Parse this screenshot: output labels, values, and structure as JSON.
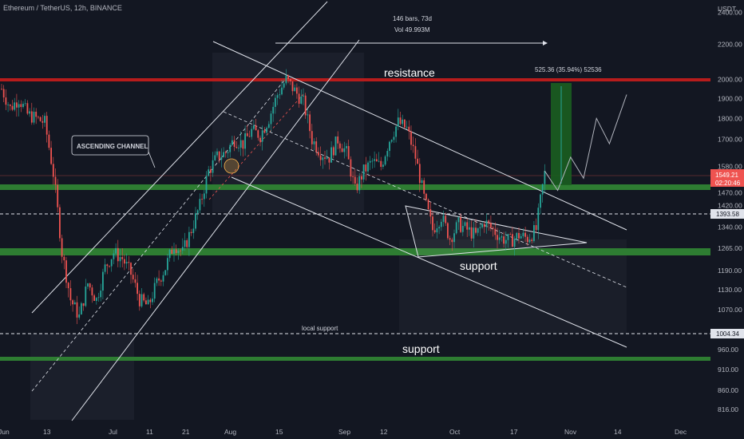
{
  "header": {
    "symbol": "Ethereum / TetherUS, 12h, BINANCE"
  },
  "price_axis": {
    "currency": "USDT"
  },
  "annotations": {
    "resistance": "resistance",
    "support_mid": "support",
    "support_low": "support",
    "local_support": "local support",
    "ascending_channel": "ASCENDING CHANNEL",
    "range_bars": "146 bars, 73d",
    "range_vol": "Vol 49.993M",
    "measure": "525.36 (35.94%) 52536"
  },
  "price_tags": {
    "current": "1549.21",
    "countdown": "02:20:46",
    "level_a": "1393.58",
    "level_b": "1004.34"
  },
  "colors": {
    "background": "#131722",
    "up": "#26a69a",
    "down": "#ef5350",
    "resistance": "#b71c1c",
    "support_zone": "#2e7d32",
    "measure_box": "#1b5e20"
  },
  "chart_data": {
    "type": "candlestick",
    "y_scale": "log",
    "ylim": [
      800,
      2450
    ],
    "xlabel": "",
    "ylabel": "",
    "y_ticks": [
      2400,
      2200,
      2000,
      1900,
      1800,
      1700,
      1580,
      1470,
      1420,
      1340,
      1265,
      1190,
      1130,
      1070,
      960,
      910,
      860,
      816
    ],
    "x_ticks": [
      "Jun",
      "13",
      "Jul",
      "11",
      "21",
      "Aug",
      "15",
      "Sep",
      "12",
      "Oct",
      "17",
      "Nov",
      "14",
      "Dec"
    ],
    "levels": {
      "resistance": 2000,
      "support_zone_mid": 1500,
      "support_zone_low": 1260,
      "support_zone_bottom": 940,
      "dashed_upper": 1393.58,
      "dashed_lower": 1004.34
    },
    "price_path": [
      [
        0,
        1950
      ],
      [
        4,
        1850
      ],
      [
        8,
        1900
      ],
      [
        12,
        1820
      ],
      [
        16,
        1800
      ],
      [
        20,
        1780
      ],
      [
        24,
        1550
      ],
      [
        28,
        1250
      ],
      [
        32,
        1100
      ],
      [
        36,
        1050
      ],
      [
        40,
        1150
      ],
      [
        44,
        1100
      ],
      [
        48,
        1200
      ],
      [
        52,
        1250
      ],
      [
        56,
        1230
      ],
      [
        60,
        1180
      ],
      [
        64,
        1100
      ],
      [
        68,
        1080
      ],
      [
        72,
        1150
      ],
      [
        76,
        1200
      ],
      [
        80,
        1280
      ],
      [
        84,
        1250
      ],
      [
        88,
        1330
      ],
      [
        92,
        1420
      ],
      [
        96,
        1560
      ],
      [
        100,
        1620
      ],
      [
        104,
        1640
      ],
      [
        108,
        1700
      ],
      [
        112,
        1680
      ],
      [
        116,
        1740
      ],
      [
        120,
        1720
      ],
      [
        124,
        1800
      ],
      [
        128,
        1920
      ],
      [
        132,
        2000
      ],
      [
        136,
        1940
      ],
      [
        140,
        1880
      ],
      [
        144,
        1700
      ],
      [
        148,
        1640
      ],
      [
        152,
        1620
      ],
      [
        156,
        1700
      ],
      [
        160,
        1640
      ],
      [
        164,
        1480
      ],
      [
        168,
        1560
      ],
      [
        172,
        1600
      ],
      [
        176,
        1580
      ],
      [
        180,
        1700
      ],
      [
        184,
        1780
      ],
      [
        188,
        1750
      ],
      [
        192,
        1620
      ],
      [
        196,
        1450
      ],
      [
        200,
        1330
      ],
      [
        204,
        1380
      ],
      [
        208,
        1300
      ],
      [
        212,
        1350
      ],
      [
        216,
        1330
      ],
      [
        220,
        1310
      ],
      [
        224,
        1360
      ],
      [
        228,
        1330
      ],
      [
        232,
        1300
      ],
      [
        236,
        1290
      ],
      [
        240,
        1310
      ],
      [
        244,
        1300
      ],
      [
        248,
        1330
      ],
      [
        252,
        1550
      ]
    ],
    "projection": [
      [
        252,
        1560
      ],
      [
        258,
        1480
      ],
      [
        264,
        1620
      ],
      [
        270,
        1530
      ],
      [
        276,
        1800
      ],
      [
        282,
        1680
      ],
      [
        290,
        1920
      ]
    ]
  }
}
